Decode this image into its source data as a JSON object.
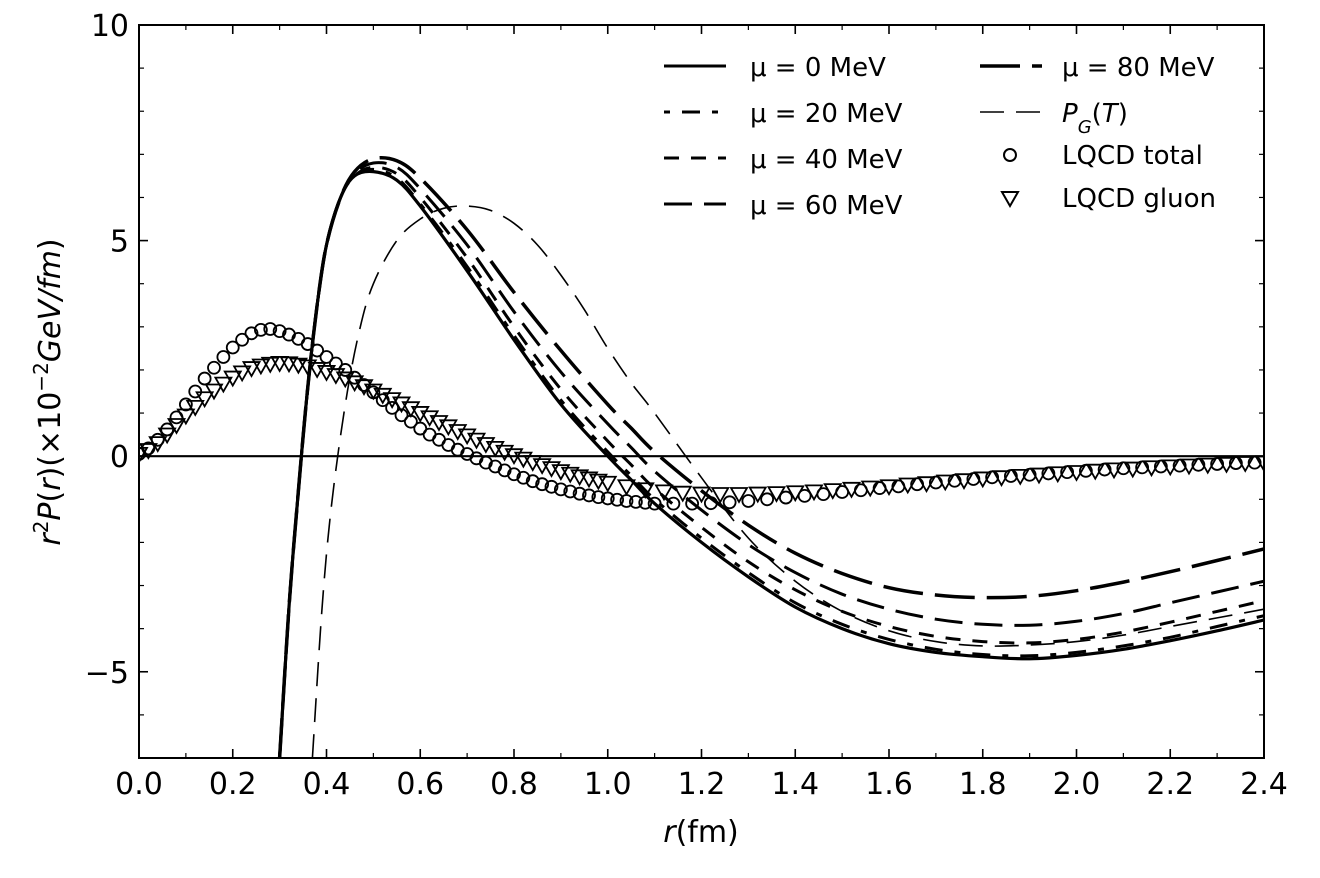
{
  "chart_data": {
    "type": "line",
    "xlabel": "r(fm)",
    "ylabel": "r²P(r)(×10⁻²GeV/fm)",
    "xlim": [
      0.0,
      2.4
    ],
    "ylim": [
      -7.0,
      10.0
    ],
    "x_ticks": [
      "0.0",
      "0.2",
      "0.4",
      "0.6",
      "0.8",
      "1.0",
      "1.2",
      "1.4",
      "1.6",
      "1.8",
      "2.0",
      "2.2",
      "2.4"
    ],
    "y_ticks": [
      "−5",
      "0",
      "5",
      "10"
    ],
    "legend_position": "top-right",
    "zero_line": true,
    "series": [
      {
        "name": "μ = 0 MeV",
        "style": "solid",
        "x": [
          0.3,
          0.32,
          0.34,
          0.36,
          0.38,
          0.4,
          0.43,
          0.46,
          0.5,
          0.55,
          0.6,
          0.7,
          0.8,
          0.9,
          1.0,
          1.05,
          1.1,
          1.2,
          1.3,
          1.4,
          1.5,
          1.6,
          1.7,
          1.8,
          1.9,
          2.0,
          2.1,
          2.2,
          2.3,
          2.4
        ],
        "y": [
          -7.0,
          -3.5,
          -0.8,
          1.6,
          3.5,
          4.9,
          6.0,
          6.5,
          6.6,
          6.4,
          5.8,
          4.3,
          2.7,
          1.2,
          0.0,
          -0.55,
          -1.1,
          -2.0,
          -2.8,
          -3.5,
          -4.0,
          -4.35,
          -4.55,
          -4.65,
          -4.7,
          -4.62,
          -4.48,
          -4.28,
          -4.05,
          -3.8
        ]
      },
      {
        "name": "μ = 20 MeV",
        "style": "dash-dot",
        "x": [
          0.3,
          0.32,
          0.34,
          0.36,
          0.38,
          0.4,
          0.43,
          0.46,
          0.5,
          0.55,
          0.6,
          0.7,
          0.8,
          0.9,
          1.0,
          1.05,
          1.1,
          1.2,
          1.3,
          1.4,
          1.5,
          1.6,
          1.7,
          1.8,
          1.9,
          2.0,
          2.1,
          2.2,
          2.3,
          2.4
        ],
        "y": [
          -7.0,
          -3.5,
          -0.8,
          1.6,
          3.5,
          4.9,
          6.0,
          6.5,
          6.65,
          6.45,
          5.85,
          4.4,
          2.8,
          1.3,
          0.1,
          -0.45,
          -1.0,
          -1.9,
          -2.7,
          -3.4,
          -3.9,
          -4.25,
          -4.48,
          -4.6,
          -4.63,
          -4.55,
          -4.4,
          -4.2,
          -3.95,
          -3.7
        ]
      },
      {
        "name": "μ = 40 MeV",
        "style": "dashed",
        "x": [
          0.3,
          0.32,
          0.34,
          0.36,
          0.38,
          0.4,
          0.43,
          0.46,
          0.5,
          0.55,
          0.6,
          0.7,
          0.8,
          0.9,
          1.0,
          1.05,
          1.1,
          1.2,
          1.3,
          1.4,
          1.5,
          1.6,
          1.7,
          1.8,
          1.9,
          2.0,
          2.1,
          2.2,
          2.3,
          2.4
        ],
        "y": [
          -7.0,
          -3.5,
          -0.8,
          1.6,
          3.5,
          4.9,
          6.0,
          6.5,
          6.7,
          6.55,
          6.0,
          4.6,
          3.0,
          1.55,
          0.35,
          -0.2,
          -0.75,
          -1.65,
          -2.45,
          -3.1,
          -3.6,
          -3.95,
          -4.18,
          -4.3,
          -4.33,
          -4.25,
          -4.08,
          -3.85,
          -3.6,
          -3.35
        ]
      },
      {
        "name": "μ = 60 MeV",
        "style": "long-dash",
        "x": [
          0.3,
          0.32,
          0.34,
          0.36,
          0.38,
          0.4,
          0.43,
          0.46,
          0.5,
          0.55,
          0.6,
          0.7,
          0.8,
          0.9,
          1.0,
          1.05,
          1.1,
          1.2,
          1.3,
          1.4,
          1.5,
          1.6,
          1.7,
          1.8,
          1.9,
          2.0,
          2.1,
          2.2,
          2.3,
          2.4
        ],
        "y": [
          -7.0,
          -3.5,
          -0.8,
          1.6,
          3.5,
          4.9,
          6.0,
          6.55,
          6.8,
          6.7,
          6.2,
          4.9,
          3.35,
          1.95,
          0.75,
          0.2,
          -0.35,
          -1.25,
          -2.05,
          -2.7,
          -3.2,
          -3.55,
          -3.78,
          -3.9,
          -3.92,
          -3.83,
          -3.65,
          -3.4,
          -3.15,
          -2.9
        ]
      },
      {
        "name": "μ = 80 MeV",
        "style": "longer-dash",
        "x": [
          0.3,
          0.32,
          0.34,
          0.36,
          0.38,
          0.4,
          0.43,
          0.46,
          0.5,
          0.55,
          0.6,
          0.7,
          0.8,
          0.9,
          1.0,
          1.05,
          1.1,
          1.2,
          1.3,
          1.4,
          1.5,
          1.6,
          1.7,
          1.8,
          1.9,
          2.0,
          2.1,
          2.2,
          2.3,
          2.4
        ],
        "y": [
          -7.0,
          -3.5,
          -0.8,
          1.6,
          3.5,
          4.9,
          6.0,
          6.6,
          6.9,
          6.85,
          6.45,
          5.25,
          3.8,
          2.45,
          1.2,
          0.65,
          0.1,
          -0.8,
          -1.6,
          -2.25,
          -2.72,
          -3.05,
          -3.22,
          -3.28,
          -3.25,
          -3.12,
          -2.92,
          -2.68,
          -2.42,
          -2.15
        ]
      },
      {
        "name": "P_G(T)",
        "style": "thin-dash",
        "x": [
          0.37,
          0.39,
          0.41,
          0.44,
          0.47,
          0.5,
          0.55,
          0.6,
          0.65,
          0.7,
          0.75,
          0.8,
          0.85,
          0.9,
          0.95,
          1.0,
          1.05,
          1.1,
          1.2,
          1.3,
          1.4,
          1.5,
          1.6,
          1.7,
          1.8,
          1.9,
          2.0,
          2.1,
          2.2,
          2.3,
          2.4
        ],
        "y": [
          -7.0,
          -3.6,
          -1.2,
          1.2,
          2.9,
          4.0,
          5.0,
          5.5,
          5.75,
          5.8,
          5.7,
          5.4,
          4.9,
          4.2,
          3.4,
          2.5,
          1.7,
          1.0,
          -0.5,
          -1.9,
          -2.9,
          -3.6,
          -4.05,
          -4.3,
          -4.4,
          -4.38,
          -4.3,
          -4.15,
          -3.95,
          -3.75,
          -3.55
        ]
      }
    ],
    "scatter_series": [
      {
        "name": "LQCD total",
        "marker": "circle",
        "x": [
          0.0,
          0.02,
          0.04,
          0.06,
          0.08,
          0.1,
          0.12,
          0.14,
          0.16,
          0.18,
          0.2,
          0.22,
          0.24,
          0.26,
          0.28,
          0.3,
          0.32,
          0.34,
          0.36,
          0.38,
          0.4,
          0.42,
          0.44,
          0.46,
          0.48,
          0.5,
          0.52,
          0.54,
          0.56,
          0.58,
          0.6,
          0.62,
          0.64,
          0.66,
          0.68,
          0.7,
          0.72,
          0.74,
          0.76,
          0.78,
          0.8,
          0.82,
          0.84,
          0.86,
          0.88,
          0.9,
          0.92,
          0.94,
          0.96,
          0.98,
          1.0,
          1.02,
          1.04,
          1.06,
          1.08,
          1.1,
          1.14,
          1.18,
          1.22,
          1.26,
          1.3,
          1.34,
          1.38,
          1.42,
          1.46,
          1.5,
          1.54,
          1.58,
          1.62,
          1.66,
          1.7,
          1.74,
          1.78,
          1.82,
          1.86,
          1.9,
          1.94,
          1.98,
          2.02,
          2.06,
          2.1,
          2.14,
          2.18,
          2.22,
          2.26,
          2.3,
          2.34,
          2.38
        ],
        "y": [
          0.05,
          0.18,
          0.38,
          0.62,
          0.9,
          1.2,
          1.5,
          1.8,
          2.05,
          2.3,
          2.52,
          2.7,
          2.85,
          2.93,
          2.95,
          2.9,
          2.82,
          2.72,
          2.6,
          2.45,
          2.3,
          2.15,
          2.0,
          1.82,
          1.65,
          1.48,
          1.3,
          1.12,
          0.95,
          0.8,
          0.64,
          0.5,
          0.38,
          0.26,
          0.15,
          0.05,
          -0.05,
          -0.15,
          -0.24,
          -0.33,
          -0.42,
          -0.5,
          -0.58,
          -0.65,
          -0.71,
          -0.77,
          -0.82,
          -0.87,
          -0.91,
          -0.95,
          -0.98,
          -1.01,
          -1.04,
          -1.06,
          -1.08,
          -1.1,
          -1.1,
          -1.1,
          -1.09,
          -1.07,
          -1.04,
          -1.0,
          -0.96,
          -0.92,
          -0.88,
          -0.83,
          -0.79,
          -0.74,
          -0.7,
          -0.65,
          -0.61,
          -0.57,
          -0.53,
          -0.49,
          -0.46,
          -0.43,
          -0.4,
          -0.37,
          -0.34,
          -0.31,
          -0.28,
          -0.26,
          -0.24,
          -0.22,
          -0.2,
          -0.18,
          -0.16,
          -0.15
        ]
      },
      {
        "name": "LQCD gluon",
        "marker": "triangle-down",
        "x": [
          0.0,
          0.02,
          0.04,
          0.06,
          0.08,
          0.1,
          0.12,
          0.14,
          0.16,
          0.18,
          0.2,
          0.22,
          0.24,
          0.26,
          0.28,
          0.3,
          0.32,
          0.34,
          0.36,
          0.38,
          0.4,
          0.42,
          0.44,
          0.46,
          0.48,
          0.5,
          0.52,
          0.54,
          0.56,
          0.58,
          0.6,
          0.62,
          0.64,
          0.66,
          0.68,
          0.7,
          0.72,
          0.74,
          0.76,
          0.78,
          0.8,
          0.82,
          0.84,
          0.86,
          0.88,
          0.9,
          0.92,
          0.94,
          0.96,
          0.98,
          1.0,
          1.04,
          1.08,
          1.12,
          1.16,
          1.2,
          1.24,
          1.28,
          1.32,
          1.36,
          1.4,
          1.44,
          1.48,
          1.52,
          1.56,
          1.6,
          1.64,
          1.68,
          1.72,
          1.76,
          1.8,
          1.84,
          1.88,
          1.92,
          1.96,
          2.0,
          2.04,
          2.08,
          2.12,
          2.16,
          2.2,
          2.24,
          2.28,
          2.32,
          2.36,
          2.4
        ],
        "y": [
          0.03,
          0.12,
          0.28,
          0.48,
          0.7,
          0.92,
          1.12,
          1.32,
          1.5,
          1.66,
          1.8,
          1.92,
          2.02,
          2.08,
          2.12,
          2.14,
          2.13,
          2.1,
          2.06,
          2.0,
          1.93,
          1.86,
          1.78,
          1.69,
          1.6,
          1.5,
          1.4,
          1.3,
          1.2,
          1.09,
          0.98,
          0.88,
          0.77,
          0.67,
          0.56,
          0.46,
          0.36,
          0.26,
          0.17,
          0.08,
          0.0,
          -0.08,
          -0.16,
          -0.23,
          -0.3,
          -0.37,
          -0.43,
          -0.49,
          -0.54,
          -0.59,
          -0.64,
          -0.72,
          -0.79,
          -0.84,
          -0.87,
          -0.89,
          -0.9,
          -0.9,
          -0.89,
          -0.88,
          -0.86,
          -0.84,
          -0.81,
          -0.78,
          -0.75,
          -0.72,
          -0.68,
          -0.65,
          -0.61,
          -0.58,
          -0.54,
          -0.51,
          -0.48,
          -0.45,
          -0.42,
          -0.39,
          -0.36,
          -0.33,
          -0.31,
          -0.28,
          -0.26,
          -0.24,
          -0.22,
          -0.2,
          -0.18,
          -0.17
        ]
      }
    ]
  },
  "legend": {
    "mu0": "μ = 0 MeV",
    "mu20": "μ = 20 MeV",
    "mu40": "μ = 40 MeV",
    "mu60": "μ = 60 MeV",
    "mu80": "μ = 80 MeV",
    "pg": "P_G(T)",
    "total": "LQCD total",
    "gluon": "LQCD gluon"
  }
}
